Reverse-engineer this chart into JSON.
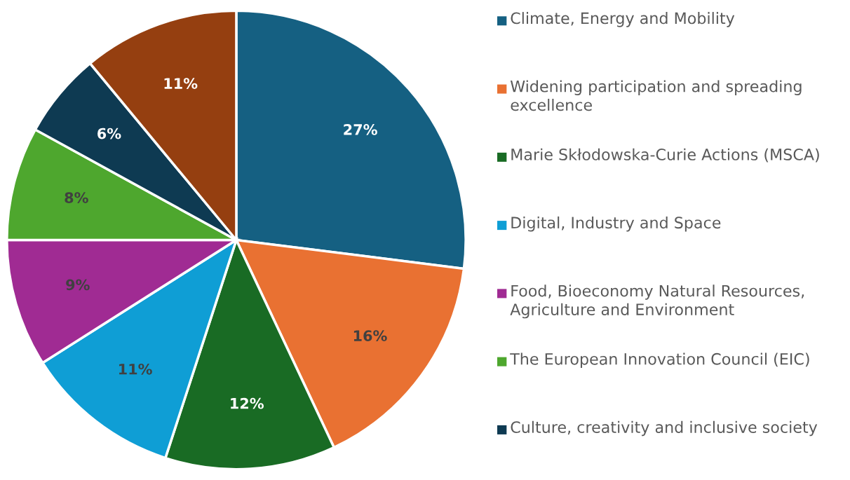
{
  "chart_data": {
    "type": "pie",
    "categories": [
      "Climate, Energy and Mobility",
      "Widening participation and spreading excellence",
      "Marie Skłodowska-Curie Actions (MSCA)",
      "Digital, Industry and Space",
      "Food, Bioeconomy Natural Resources, Agriculture and Environment",
      "The European Innovation Council (EIC)",
      "Culture, creativity and inclusive society",
      null
    ],
    "values": [
      27,
      16,
      12,
      11,
      9,
      8,
      6,
      11
    ],
    "colors": [
      "#156082",
      "#e97132",
      "#196b24",
      "#0f9ed5",
      "#a02b93",
      "#4ea72e",
      "#0e3a52",
      "#953f10"
    ],
    "value_labels": [
      "27%",
      "16%",
      "12%",
      "11%",
      "9%",
      "8%",
      "6%",
      "11%"
    ],
    "legend": "right"
  }
}
